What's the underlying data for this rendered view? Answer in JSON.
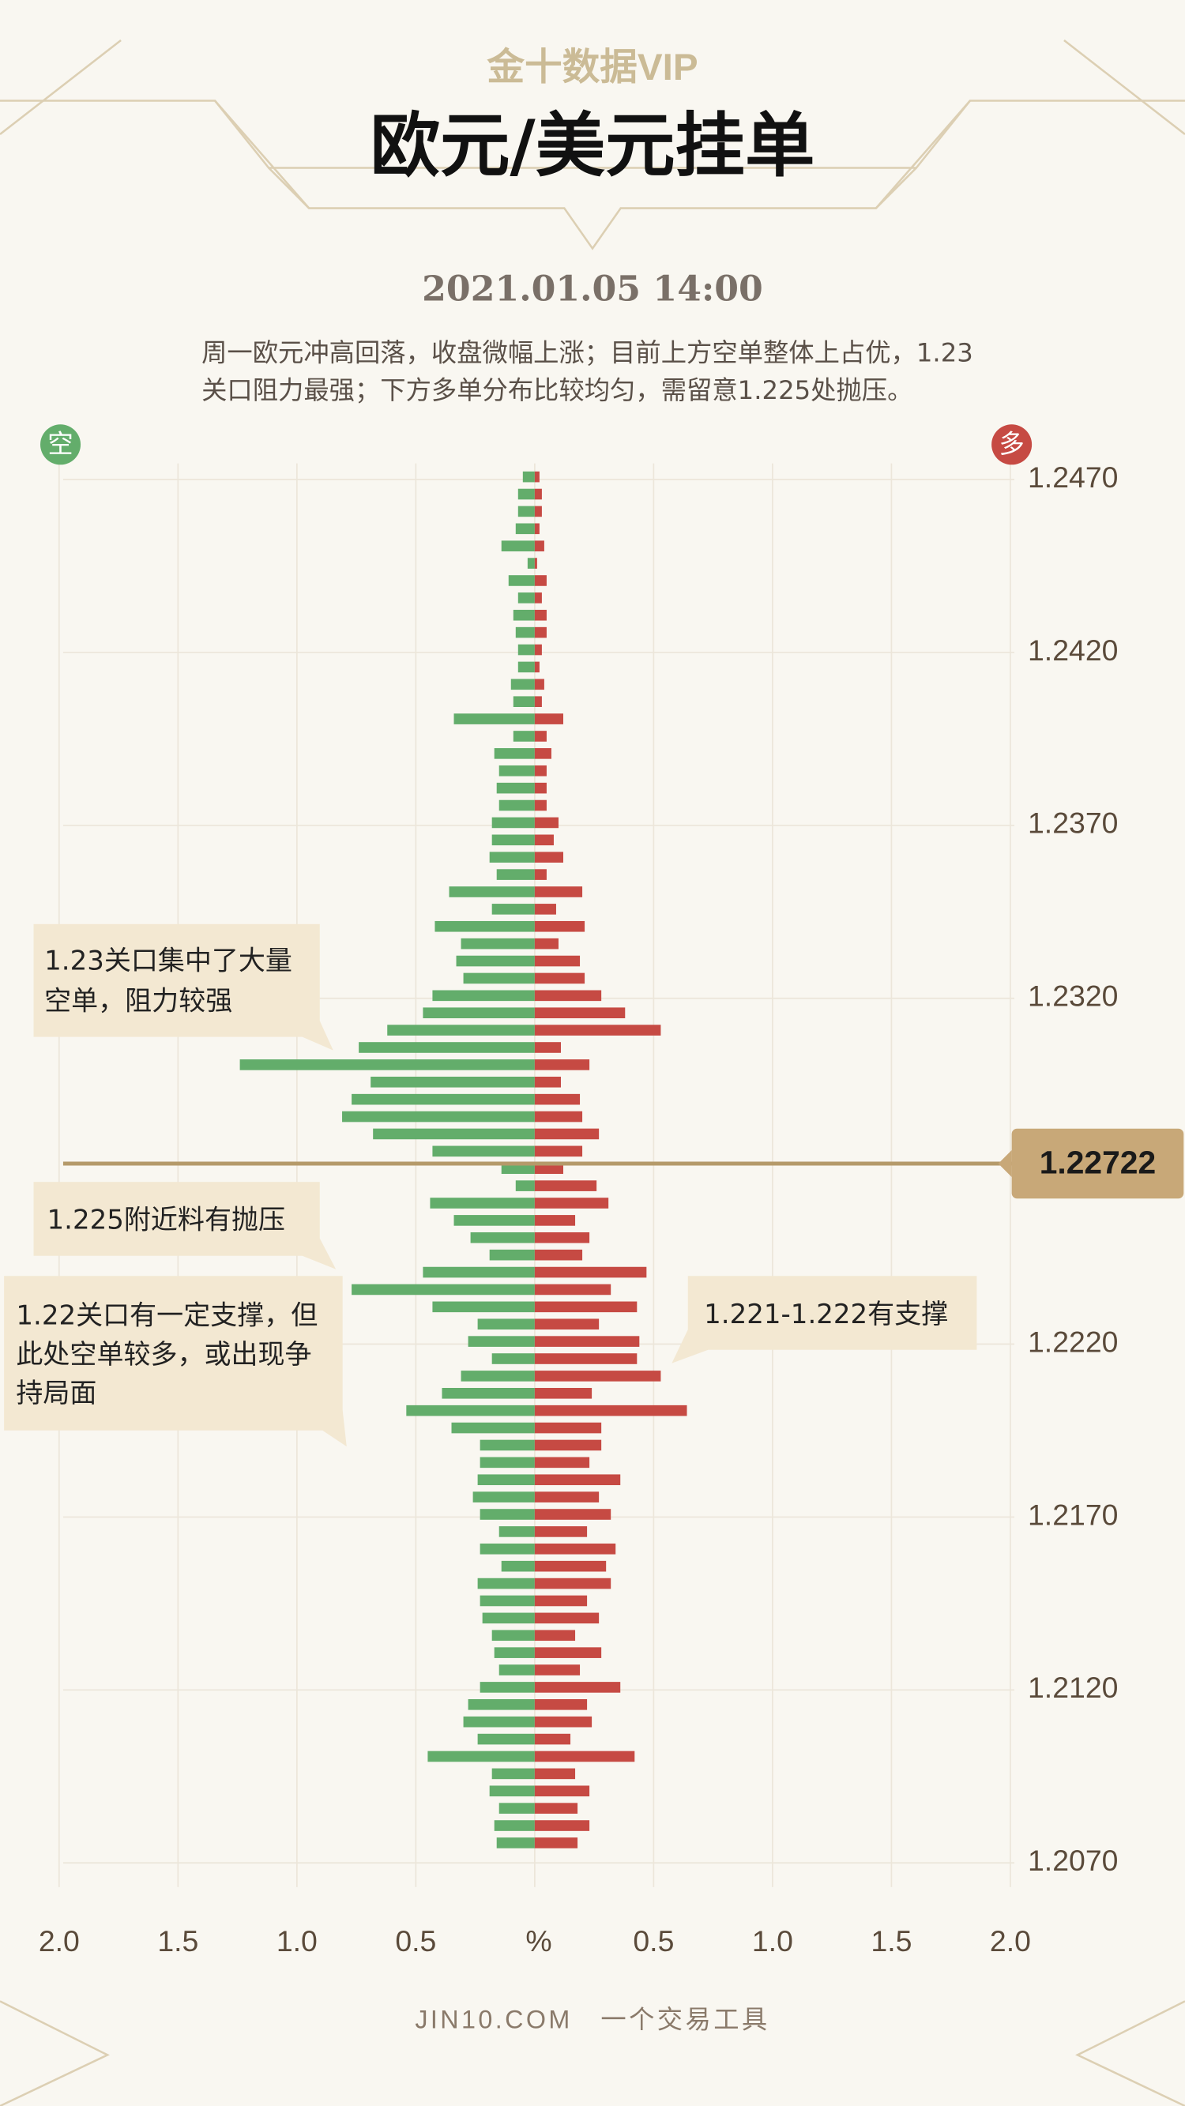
{
  "chart_data": {
    "type": "butterfly",
    "logo": "金十数据VIP",
    "title": "欧元/美元挂单",
    "subtitle": "2021.01.05 14:00",
    "description": "周一欧元冲高回落，收盘微幅上涨；目前上方空单整体上占优，1.23关口阻力最强；下方多单分布比较均匀，需留意1.225处抛压。",
    "y": [
      1.247,
      1.2465,
      1.246,
      1.2455,
      1.245,
      1.2445,
      1.244,
      1.2435,
      1.243,
      1.2425,
      1.242,
      1.2415,
      1.241,
      1.2405,
      1.24,
      1.2395,
      1.239,
      1.2385,
      1.238,
      1.2375,
      1.237,
      1.2365,
      1.236,
      1.2355,
      1.235,
      1.2345,
      1.234,
      1.2335,
      1.233,
      1.2325,
      1.232,
      1.2315,
      1.231,
      1.2305,
      1.23,
      1.2295,
      1.229,
      1.2285,
      1.228,
      1.2275,
      1.227,
      1.2265,
      1.226,
      1.2255,
      1.225,
      1.2245,
      1.224,
      1.2235,
      1.223,
      1.2225,
      1.222,
      1.2215,
      1.221,
      1.2205,
      1.22,
      1.2195,
      1.219,
      1.2185,
      1.218,
      1.2175,
      1.217,
      1.2165,
      1.216,
      1.2155,
      1.215,
      1.2145,
      1.214,
      1.2135,
      1.213,
      1.2125,
      1.212,
      1.2115,
      1.211,
      1.2105,
      1.21,
      1.2095,
      1.209,
      1.2085,
      1.208,
      1.2075
    ],
    "series": [
      {
        "name": "空",
        "color": "#63ad6b",
        "side": "left",
        "values": [
          0.05,
          0.07,
          0.07,
          0.08,
          0.14,
          0.03,
          0.11,
          0.07,
          0.09,
          0.08,
          0.07,
          0.07,
          0.1,
          0.09,
          0.34,
          0.09,
          0.17,
          0.15,
          0.16,
          0.15,
          0.18,
          0.18,
          0.19,
          0.16,
          0.36,
          0.18,
          0.42,
          0.31,
          0.33,
          0.3,
          0.43,
          0.47,
          0.62,
          0.74,
          1.24,
          0.69,
          0.77,
          0.81,
          0.68,
          0.43,
          0.14,
          0.08,
          0.44,
          0.34,
          0.27,
          0.19,
          0.47,
          0.77,
          0.43,
          0.24,
          0.28,
          0.18,
          0.31,
          0.39,
          0.54,
          0.35,
          0.23,
          0.23,
          0.24,
          0.26,
          0.23,
          0.15,
          0.23,
          0.14,
          0.24,
          0.23,
          0.22,
          0.18,
          0.17,
          0.15,
          0.23,
          0.28,
          0.3,
          0.24,
          0.45,
          0.18,
          0.19,
          0.15,
          0.17,
          0.16
        ]
      },
      {
        "name": "多",
        "color": "#c64a43",
        "side": "right",
        "values": [
          0.02,
          0.03,
          0.03,
          0.02,
          0.04,
          0.01,
          0.05,
          0.03,
          0.05,
          0.05,
          0.03,
          0.02,
          0.04,
          0.03,
          0.12,
          0.05,
          0.07,
          0.05,
          0.05,
          0.05,
          0.1,
          0.08,
          0.12,
          0.05,
          0.2,
          0.09,
          0.21,
          0.1,
          0.19,
          0.21,
          0.28,
          0.38,
          0.53,
          0.11,
          0.23,
          0.11,
          0.19,
          0.2,
          0.27,
          0.2,
          0.12,
          0.26,
          0.31,
          0.17,
          0.23,
          0.2,
          0.47,
          0.32,
          0.43,
          0.27,
          0.44,
          0.43,
          0.53,
          0.24,
          0.64,
          0.28,
          0.28,
          0.23,
          0.36,
          0.27,
          0.32,
          0.22,
          0.34,
          0.3,
          0.32,
          0.22,
          0.27,
          0.17,
          0.28,
          0.19,
          0.36,
          0.22,
          0.24,
          0.15,
          0.42,
          0.17,
          0.23,
          0.18,
          0.23,
          0.18
        ]
      }
    ],
    "ylim": [
      1.2055,
      1.2485
    ],
    "yticks": [
      {
        "value": 1.247,
        "label": "1.2470"
      },
      {
        "value": 1.242,
        "label": "1.2420"
      },
      {
        "value": 1.237,
        "label": "1.2370"
      },
      {
        "value": 1.232,
        "label": "1.2320"
      },
      {
        "value": 1.222,
        "label": "1.2220"
      },
      {
        "value": 1.217,
        "label": "1.2170"
      },
      {
        "value": 1.212,
        "label": "1.2120"
      },
      {
        "value": 1.207,
        "label": "1.2070"
      }
    ],
    "xlim": [
      0,
      2
    ],
    "xticks": [
      0.5,
      {
        "value": 1,
        "label": "1.0"
      },
      1.5,
      {
        "value": 2,
        "label": "2.0"
      }
    ],
    "x_unit": "%",
    "grid": true,
    "current_price": 1.22722,
    "annotations": [
      "1.23关口集中了大量空单，阻力较强",
      "1.225附近料有抛压",
      "1.22关口有一定支撑，但此处空单较多，或出现争持局面",
      "1.221-1.222有支撑"
    ],
    "footer": "JIN10.COM　一个交易工具"
  }
}
